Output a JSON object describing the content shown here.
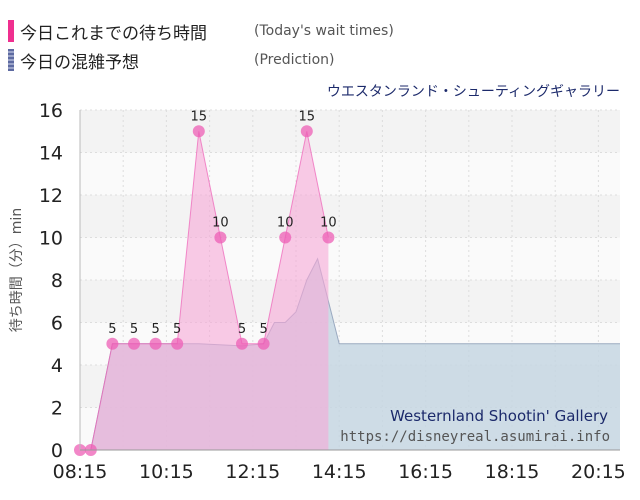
{
  "legend": {
    "actual_jp": "今日これまでの待ち時間",
    "actual_en": "(Today's wait times)",
    "prediction_jp": "今日の混雑予想",
    "prediction_en": "(Prediction)"
  },
  "colors": {
    "actual": "#ee5fb6",
    "actual_fill": "#f7a9d7",
    "prediction": "#5d6aa1",
    "prediction_fill": "#c5d6e2"
  },
  "ride_title_jp": "ウエスタンランド・シューティングギャラリー",
  "watermark": {
    "line1": "Westernland Shootin' Gallery",
    "line2": "https://disneyreal.asumirai.info"
  },
  "chart_data": {
    "type": "area",
    "ylabel": "待ち時間（分）min",
    "ylim": [
      0,
      16
    ],
    "yticks": [
      0,
      2,
      4,
      6,
      8,
      10,
      12,
      14,
      16
    ],
    "xlim": [
      "08:15",
      "20:45"
    ],
    "xticks": [
      "08:15",
      "10:15",
      "12:15",
      "14:15",
      "16:15",
      "18:15",
      "20:15"
    ],
    "grid": true,
    "series": [
      {
        "name": "今日これまでの待ち時間",
        "x": [
          "08:15",
          "08:30",
          "09:00",
          "09:30",
          "10:00",
          "10:30",
          "11:00",
          "11:30",
          "12:00",
          "12:30",
          "13:00",
          "13:30",
          "14:00"
        ],
        "values": [
          0,
          0,
          5,
          5,
          5,
          5,
          15,
          10,
          5,
          5,
          10,
          15,
          10
        ],
        "labels": [
          "",
          "",
          "5",
          "5",
          "5",
          "5",
          "15",
          "10",
          "5",
          "5",
          "10",
          "15",
          "10"
        ]
      },
      {
        "name": "今日の混雑予想",
        "x": [
          "08:15",
          "08:30",
          "08:45",
          "09:00",
          "10:00",
          "11:00",
          "12:00",
          "12:30",
          "12:45",
          "13:00",
          "13:15",
          "13:30",
          "13:45",
          "14:00",
          "14:15",
          "20:45"
        ],
        "values": [
          0,
          0,
          2.5,
          5,
          5,
          5,
          4.9,
          5,
          6,
          6,
          6.5,
          8,
          9,
          7,
          5,
          5
        ]
      }
    ]
  }
}
